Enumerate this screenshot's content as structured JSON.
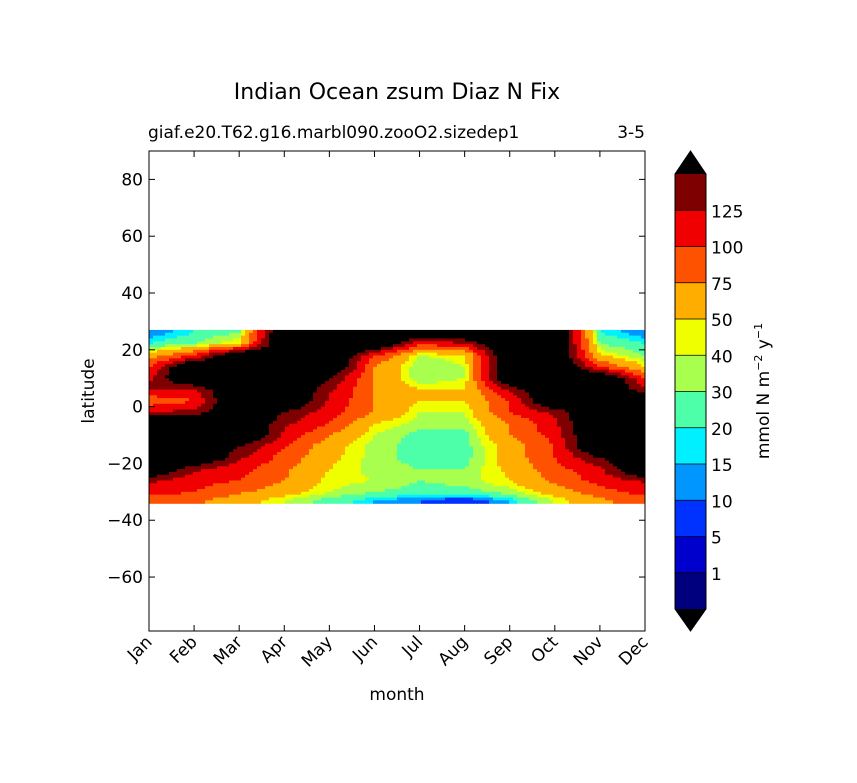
{
  "chart_data": {
    "type": "heatmap",
    "title": "Indian Ocean zsum Diaz N Fix",
    "subtitle_left": "giaf.e20.T62.g16.marbl090.zooO2.sizedep1",
    "subtitle_right": "3-5",
    "xlabel": "month",
    "ylabel": "latitude",
    "x_tick_labels": [
      "Jan",
      "Feb",
      "Mar",
      "Apr",
      "May",
      "Jun",
      "Jul",
      "Aug",
      "Sep",
      "Oct",
      "Nov",
      "Dec"
    ],
    "y_ticks": [
      80,
      60,
      40,
      20,
      0,
      -20,
      -40,
      -60
    ],
    "y_tick_labels": [
      "80",
      "60",
      "40",
      "20",
      "0",
      "−20",
      "−40",
      "−60"
    ],
    "ylim": [
      -79,
      90
    ],
    "data_lat_range": [
      -34,
      27
    ],
    "colorbar": {
      "label_main": "mmol N m",
      "label_exp1": "−2",
      "label_mid": " y",
      "label_exp2": "−1",
      "tick_labels": [
        "1",
        "5",
        "10",
        "15",
        "20",
        "30",
        "40",
        "50",
        "75",
        "100",
        "125"
      ],
      "colors": [
        "#00007f",
        "#0000cd",
        "#0032ff",
        "#0096ff",
        "#00f0ff",
        "#4dffa9",
        "#a9ff4d",
        "#f0ff00",
        "#ffae00",
        "#ff5200",
        "#f00000",
        "#7f0000"
      ],
      "under_color": "#000000",
      "over_color": "#000000"
    },
    "field": {
      "months": [
        1,
        2,
        3,
        4,
        5,
        6,
        7,
        8,
        9,
        10,
        11,
        12
      ],
      "latitudes": [
        26,
        22,
        18,
        14,
        10,
        6,
        2,
        -2,
        -6,
        -10,
        -14,
        -18,
        -22,
        -26,
        -30,
        -33
      ],
      "values": [
        [
          10,
          20,
          30,
          200,
          200,
          200,
          200,
          200,
          200,
          200,
          20,
          10
        ],
        [
          20,
          30,
          50,
          200,
          200,
          200,
          100,
          120,
          200,
          200,
          30,
          20
        ],
        [
          60,
          100,
          200,
          200,
          200,
          100,
          40,
          45,
          200,
          200,
          50,
          30
        ],
        [
          100,
          200,
          200,
          200,
          200,
          75,
          30,
          40,
          200,
          200,
          100,
          50
        ],
        [
          120,
          200,
          200,
          200,
          150,
          75,
          30,
          40,
          200,
          200,
          200,
          100
        ],
        [
          130,
          120,
          200,
          200,
          130,
          75,
          50,
          50,
          130,
          200,
          200,
          130
        ],
        [
          80,
          100,
          200,
          200,
          120,
          75,
          50,
          50,
          100,
          200,
          200,
          200
        ],
        [
          130,
          130,
          200,
          150,
          110,
          75,
          40,
          40,
          100,
          130,
          200,
          200
        ],
        [
          200,
          200,
          200,
          130,
          100,
          50,
          35,
          35,
          75,
          120,
          200,
          200
        ],
        [
          200,
          200,
          200,
          120,
          75,
          40,
          25,
          25,
          75,
          110,
          200,
          200
        ],
        [
          200,
          200,
          150,
          100,
          60,
          35,
          25,
          25,
          60,
          100,
          200,
          200
        ],
        [
          200,
          200,
          130,
          90,
          55,
          35,
          25,
          25,
          60,
          100,
          150,
          200
        ],
        [
          200,
          130,
          110,
          80,
          50,
          35,
          30,
          30,
          55,
          90,
          120,
          200
        ],
        [
          130,
          110,
          100,
          75,
          45,
          40,
          30,
          35,
          50,
          80,
          110,
          130
        ],
        [
          110,
          100,
          80,
          60,
          40,
          30,
          25,
          25,
          35,
          60,
          90,
          110
        ],
        [
          90,
          80,
          60,
          40,
          25,
          15,
          10,
          5,
          15,
          40,
          70,
          90
        ]
      ]
    }
  }
}
